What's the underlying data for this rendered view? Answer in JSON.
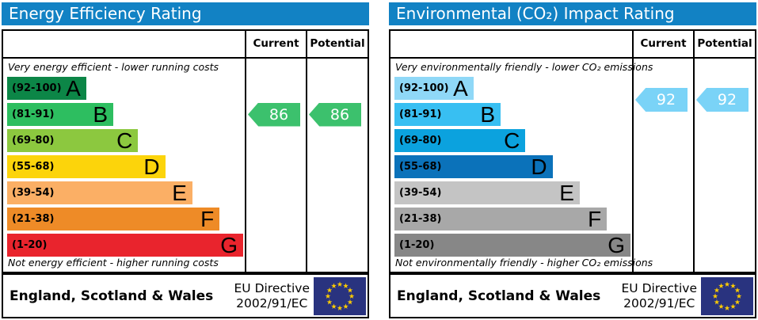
{
  "colors": {
    "header_blue": "#1282c4",
    "eu_flag_blue": "#29337f",
    "eu_star_yellow": "#ffcc00"
  },
  "panels": [
    {
      "title": "Energy Efficiency Rating",
      "columns": {
        "current": "Current",
        "potential": "Potential"
      },
      "top_caption": "Very energy efficient - lower running costs",
      "bottom_caption": "Not energy efficient - higher running costs",
      "bands": [
        {
          "label": "(92-100)",
          "letter": "A",
          "min": 92,
          "max": 100,
          "color": "#0c8647",
          "width_pct": 33.5
        },
        {
          "label": "(81-91)",
          "letter": "B",
          "min": 81,
          "max": 91,
          "color": "#2dbe60",
          "width_pct": 45
        },
        {
          "label": "(69-80)",
          "letter": "C",
          "min": 69,
          "max": 80,
          "color": "#8cc83f",
          "width_pct": 55.5
        },
        {
          "label": "(55-68)",
          "letter": "D",
          "min": 55,
          "max": 68,
          "color": "#fcd40b",
          "width_pct": 67
        },
        {
          "label": "(39-54)",
          "letter": "E",
          "min": 39,
          "max": 54,
          "color": "#fbaf65",
          "width_pct": 78.5
        },
        {
          "label": "(21-38)",
          "letter": "F",
          "min": 21,
          "max": 38,
          "color": "#ee8b27",
          "width_pct": 90
        },
        {
          "label": "(1-20)",
          "letter": "G",
          "min": 1,
          "max": 20,
          "color": "#e9242d",
          "width_pct": 100
        }
      ],
      "current": {
        "value": 86,
        "color": "#3cc16d"
      },
      "potential": {
        "value": 86,
        "color": "#3cc16d"
      },
      "footer": {
        "region": "England, Scotland & Wales",
        "directive_line1": "EU Directive",
        "directive_line2": "2002/91/EC"
      }
    },
    {
      "title": "Environmental (CO₂) Impact Rating",
      "columns": {
        "current": "Current",
        "potential": "Potential"
      },
      "top_caption": "Very environmentally friendly - lower CO₂ emissions",
      "bottom_caption": "Not environmentally friendly - higher CO₂ emissions",
      "bands": [
        {
          "label": "(92-100)",
          "letter": "A",
          "min": 92,
          "max": 100,
          "color": "#8fd8f7",
          "width_pct": 33.5
        },
        {
          "label": "(81-91)",
          "letter": "B",
          "min": 81,
          "max": 91,
          "color": "#38bff2",
          "width_pct": 45
        },
        {
          "label": "(69-80)",
          "letter": "C",
          "min": 69,
          "max": 80,
          "color": "#0ba2de",
          "width_pct": 55.5
        },
        {
          "label": "(55-68)",
          "letter": "D",
          "min": 55,
          "max": 68,
          "color": "#0b72ba",
          "width_pct": 67
        },
        {
          "label": "(39-54)",
          "letter": "E",
          "min": 39,
          "max": 54,
          "color": "#c4c4c4",
          "width_pct": 78.5
        },
        {
          "label": "(21-38)",
          "letter": "F",
          "min": 21,
          "max": 38,
          "color": "#a8a8a8",
          "width_pct": 90
        },
        {
          "label": "(1-20)",
          "letter": "G",
          "min": 1,
          "max": 20,
          "color": "#878787",
          "width_pct": 100
        }
      ],
      "current": {
        "value": 92,
        "color": "#7ad3f7"
      },
      "potential": {
        "value": 92,
        "color": "#7ad3f7"
      },
      "footer": {
        "region": "England, Scotland & Wales",
        "directive_line1": "EU Directive",
        "directive_line2": "2002/91/EC"
      }
    }
  ],
  "chart_data": [
    {
      "type": "bar",
      "orientation": "horizontal",
      "title": "Energy Efficiency Rating",
      "categories": [
        "A",
        "B",
        "C",
        "D",
        "E",
        "F",
        "G"
      ],
      "band_ranges": [
        "92-100",
        "81-91",
        "69-80",
        "55-68",
        "39-54",
        "21-38",
        "1-20"
      ],
      "values": [
        33.5,
        45,
        55.5,
        67,
        78.5,
        90,
        100
      ],
      "band_colors": [
        "#0c8647",
        "#2dbe60",
        "#8cc83f",
        "#fcd40b",
        "#fbaf65",
        "#ee8b27",
        "#e9242d"
      ],
      "current": 86,
      "potential": 86,
      "current_band": "B",
      "potential_band": "B",
      "xlim": [
        0,
        100
      ],
      "legend": false,
      "top_caption": "Very energy efficient - lower running costs",
      "bottom_caption": "Not energy efficient - higher running costs"
    },
    {
      "type": "bar",
      "orientation": "horizontal",
      "title": "Environmental (CO₂) Impact Rating",
      "categories": [
        "A",
        "B",
        "C",
        "D",
        "E",
        "F",
        "G"
      ],
      "band_ranges": [
        "92-100",
        "81-91",
        "69-80",
        "55-68",
        "39-54",
        "21-38",
        "1-20"
      ],
      "values": [
        33.5,
        45,
        55.5,
        67,
        78.5,
        90,
        100
      ],
      "band_colors": [
        "#8fd8f7",
        "#38bff2",
        "#0ba2de",
        "#0b72ba",
        "#c4c4c4",
        "#a8a8a8",
        "#878787"
      ],
      "current": 92,
      "potential": 92,
      "current_band": "A",
      "potential_band": "A",
      "xlim": [
        0,
        100
      ],
      "legend": false,
      "top_caption": "Very environmentally friendly - lower CO₂ emissions",
      "bottom_caption": "Not environmentally friendly - higher CO₂ emissions"
    }
  ]
}
